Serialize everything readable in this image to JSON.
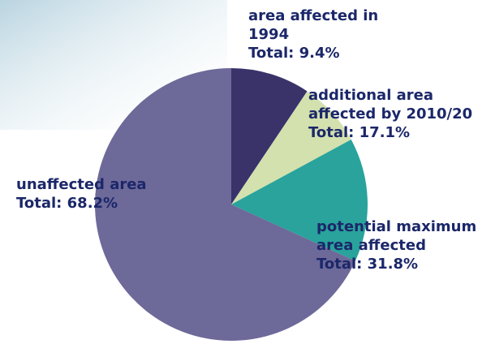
{
  "chart_data": {
    "type": "pie",
    "categories": [
      "area affected in 1994",
      "additional area affected by 2010/20",
      "potential maximum area affected",
      "unaffected area"
    ],
    "values": [
      9.4,
      17.1,
      31.8,
      68.2
    ],
    "value_labels": [
      "Total: 9.4%",
      "Total: 17.1%",
      "Total: 31.8%",
      "Total: 68.2%"
    ],
    "colors": [
      "#39336a",
      "#d3e1ae",
      "#29a39c",
      "#6d6999"
    ]
  }
}
